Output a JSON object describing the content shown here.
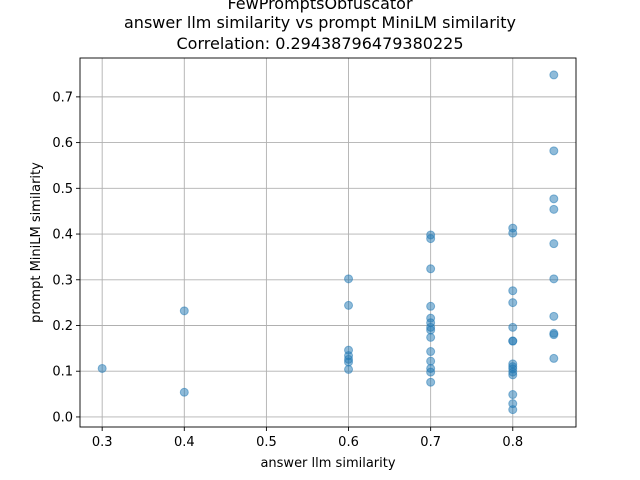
{
  "chart_data": {
    "type": "scatter",
    "title_lines": [
      "FewPromptsObfuscator",
      "answer llm similarity vs prompt MiniLM similarity",
      "Correlation: 0.29438796479380225"
    ],
    "xlabel": "answer llm similarity",
    "ylabel": "prompt MiniLM similarity",
    "xlim": [
      0.273,
      0.877
    ],
    "ylim": [
      -0.022,
      0.785
    ],
    "xticks": [
      0.3,
      0.4,
      0.5,
      0.6,
      0.7,
      0.8
    ],
    "yticks": [
      0.0,
      0.1,
      0.2,
      0.3,
      0.4,
      0.5,
      0.6,
      0.7
    ],
    "xtick_labels": [
      "0.3",
      "0.4",
      "0.5",
      "0.6",
      "0.7",
      "0.8"
    ],
    "ytick_labels": [
      "0.0",
      "0.1",
      "0.2",
      "0.3",
      "0.4",
      "0.5",
      "0.6",
      "0.7"
    ],
    "grid": true,
    "color": "#1f77b4",
    "points": [
      [
        0.3,
        0.106
      ],
      [
        0.4,
        0.232
      ],
      [
        0.4,
        0.054
      ],
      [
        0.6,
        0.302
      ],
      [
        0.6,
        0.244
      ],
      [
        0.6,
        0.146
      ],
      [
        0.6,
        0.134
      ],
      [
        0.6,
        0.126
      ],
      [
        0.6,
        0.12
      ],
      [
        0.6,
        0.104
      ],
      [
        0.7,
        0.398
      ],
      [
        0.7,
        0.39
      ],
      [
        0.7,
        0.324
      ],
      [
        0.7,
        0.242
      ],
      [
        0.7,
        0.216
      ],
      [
        0.7,
        0.206
      ],
      [
        0.7,
        0.196
      ],
      [
        0.7,
        0.19
      ],
      [
        0.7,
        0.174
      ],
      [
        0.7,
        0.143
      ],
      [
        0.7,
        0.122
      ],
      [
        0.7,
        0.106
      ],
      [
        0.7,
        0.098
      ],
      [
        0.7,
        0.076
      ],
      [
        0.8,
        0.413
      ],
      [
        0.8,
        0.402
      ],
      [
        0.8,
        0.276
      ],
      [
        0.8,
        0.25
      ],
      [
        0.8,
        0.196
      ],
      [
        0.8,
        0.166
      ],
      [
        0.8,
        0.166
      ],
      [
        0.8,
        0.116
      ],
      [
        0.8,
        0.11
      ],
      [
        0.8,
        0.105
      ],
      [
        0.8,
        0.098
      ],
      [
        0.8,
        0.092
      ],
      [
        0.8,
        0.049
      ],
      [
        0.8,
        0.029
      ],
      [
        0.8,
        0.016
      ],
      [
        0.85,
        0.748
      ],
      [
        0.85,
        0.582
      ],
      [
        0.85,
        0.477
      ],
      [
        0.85,
        0.454
      ],
      [
        0.85,
        0.379
      ],
      [
        0.85,
        0.302
      ],
      [
        0.85,
        0.22
      ],
      [
        0.85,
        0.183
      ],
      [
        0.85,
        0.18
      ],
      [
        0.85,
        0.128
      ]
    ]
  }
}
